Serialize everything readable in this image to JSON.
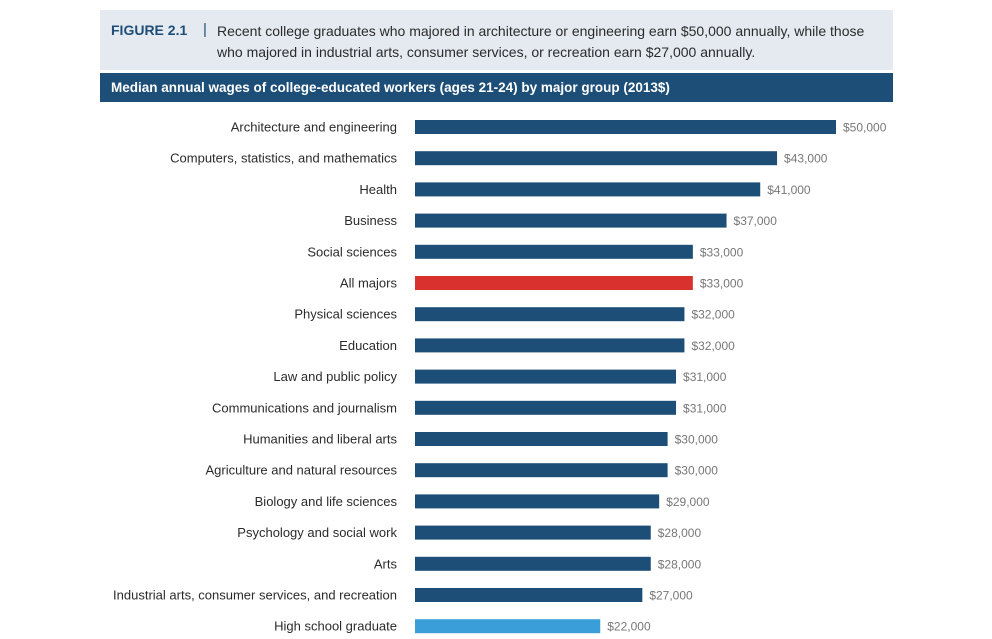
{
  "figure": {
    "label": "FIGURE 2.1",
    "separator": "|",
    "caption": "Recent college graduates who majored in architecture or engineering earn $50,000 annually, while those who majored in industrial arts, consumer services, or recreation earn $27,000 annually.",
    "header_bg": "#e5eaf1"
  },
  "chart_data": {
    "type": "bar",
    "orientation": "horizontal",
    "title": "Median annual wages of college-educated workers (ages 21-24) by major group (2013$)",
    "xlabel": "",
    "ylabel": "",
    "xlim": [
      0,
      50000
    ],
    "grid": false,
    "legend": "none",
    "colors": {
      "default": "#1d4e78",
      "highlight": "#d9322e",
      "baseline": "#3a9fd8"
    },
    "categories": [
      "Architecture and engineering",
      "Computers, statistics, and mathematics",
      "Health",
      "Business",
      "Social sciences",
      "All majors",
      "Physical sciences",
      "Education",
      "Law and public policy",
      "Communications and journalism",
      "Humanities and liberal arts",
      "Agriculture and natural resources",
      "Biology and life sciences",
      "Psychology and social work",
      "Arts",
      "Industrial arts, consumer services, and recreation",
      "High school graduate"
    ],
    "values": [
      50000,
      43000,
      41000,
      37000,
      33000,
      33000,
      32000,
      32000,
      31000,
      31000,
      30000,
      30000,
      29000,
      28000,
      28000,
      27000,
      22000
    ],
    "value_labels": [
      "$50,000",
      "$43,000",
      "$41,000",
      "$37,000",
      "$33,000",
      "$33,000",
      "$32,000",
      "$32,000",
      "$31,000",
      "$31,000",
      "$30,000",
      "$30,000",
      "$29,000",
      "$28,000",
      "$28,000",
      "$27,000",
      "$22,000"
    ],
    "bar_color_keys": [
      "default",
      "default",
      "default",
      "default",
      "default",
      "highlight",
      "default",
      "default",
      "default",
      "default",
      "default",
      "default",
      "default",
      "default",
      "default",
      "default",
      "baseline"
    ]
  }
}
